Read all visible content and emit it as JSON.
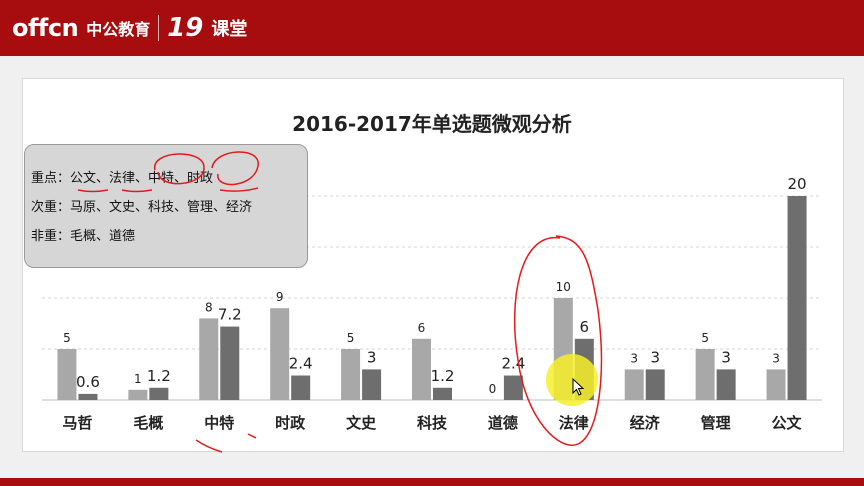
{
  "header": {
    "logo_text": "offcn",
    "logo_cn": "中公教育",
    "channel_number": "19",
    "channel_cn": "课堂"
  },
  "notes": {
    "key": "重点：公文、法律、中特、时政",
    "secondary": "次重：马原、文史、科技、管理、经济",
    "minor": "非重：毛概、道德"
  },
  "chart_data": {
    "type": "bar",
    "title": "2016-2017年单选题微观分析",
    "categories": [
      "马哲",
      "毛概",
      "中特",
      "时政",
      "文史",
      "科技",
      "道德",
      "法律",
      "经济",
      "管理",
      "公文"
    ],
    "series": [
      {
        "values": [
          5,
          1,
          8,
          9,
          5,
          6,
          0,
          10,
          3,
          5,
          3
        ]
      },
      {
        "values": [
          0.6,
          1.2,
          7.2,
          2.4,
          3,
          1.2,
          2.4,
          6,
          3,
          3,
          20
        ]
      }
    ],
    "value_labels": [
      [
        "5",
        "1",
        "8",
        "9",
        "5",
        "6",
        "0",
        "10",
        "3",
        "5",
        "3"
      ],
      [
        "0.6",
        "1.2",
        "7.2",
        "2.4",
        "3",
        "1.2",
        "2.4",
        "6",
        "3",
        "3",
        "20"
      ]
    ],
    "ylim": [
      0,
      20
    ],
    "grid": true,
    "colors": [
      "#a8a8a8",
      "#6e6e6e"
    ],
    "annotation_color": "#e31b1b"
  }
}
